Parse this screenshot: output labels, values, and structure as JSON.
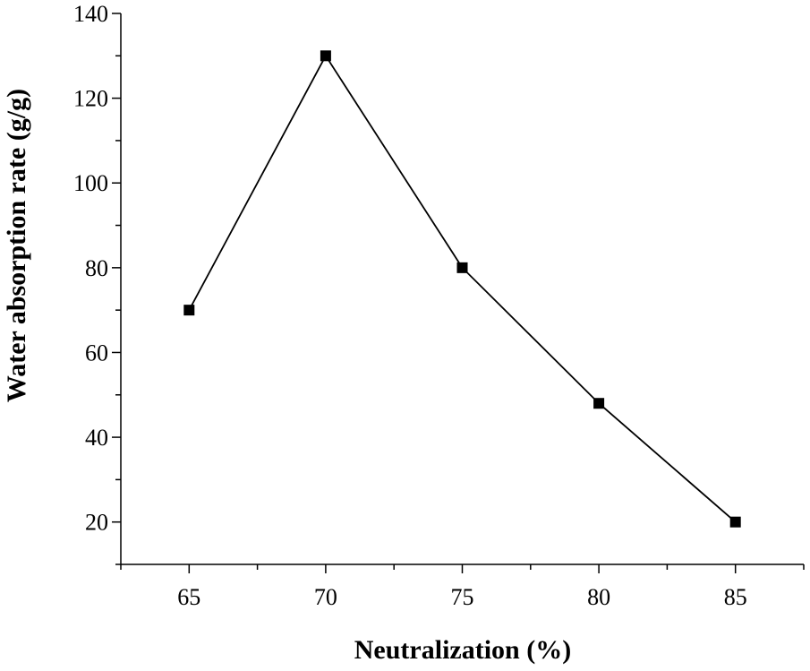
{
  "chart_data": {
    "type": "line",
    "xlabel": "Neutralization (%)",
    "ylabel": "Water absorption rate (g/g)",
    "xlim": [
      62.5,
      87.5
    ],
    "ylim": [
      10,
      140
    ],
    "x_ticks": [
      65,
      70,
      75,
      80,
      85
    ],
    "y_ticks": [
      20,
      40,
      60,
      80,
      100,
      120,
      140
    ],
    "grid": false,
    "marker": "square",
    "series": [
      {
        "x": [
          65,
          70,
          75,
          80,
          85
        ],
        "values": [
          70,
          130,
          80,
          48,
          20
        ],
        "color": "#000000"
      }
    ]
  }
}
